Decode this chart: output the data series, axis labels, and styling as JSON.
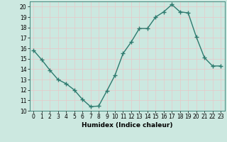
{
  "x": [
    0,
    1,
    2,
    3,
    4,
    5,
    6,
    7,
    8,
    9,
    10,
    11,
    12,
    13,
    14,
    15,
    16,
    17,
    18,
    19,
    20,
    21,
    22,
    23
  ],
  "y": [
    15.8,
    14.9,
    13.9,
    13.0,
    12.6,
    12.0,
    11.1,
    10.4,
    10.45,
    11.9,
    13.4,
    15.5,
    16.6,
    17.9,
    17.9,
    19.0,
    19.5,
    20.2,
    19.5,
    19.4,
    17.1,
    15.1,
    14.3,
    14.3
  ],
  "line_color": "#2d7a6e",
  "marker": "+",
  "marker_size": 4.0,
  "bg_color": "#cce8e0",
  "grid_color": "#e8c8c8",
  "xlabel": "Humidex (Indice chaleur)",
  "xlim": [
    -0.5,
    23.5
  ],
  "ylim": [
    10,
    20.5
  ],
  "yticks": [
    10,
    11,
    12,
    13,
    14,
    15,
    16,
    17,
    18,
    19,
    20
  ],
  "xticks": [
    0,
    1,
    2,
    3,
    4,
    5,
    6,
    7,
    8,
    9,
    10,
    11,
    12,
    13,
    14,
    15,
    16,
    17,
    18,
    19,
    20,
    21,
    22,
    23
  ],
  "xlabel_fontsize": 6.5,
  "tick_fontsize": 5.5,
  "line_width": 1.0,
  "marker_color": "#2d7a6e"
}
